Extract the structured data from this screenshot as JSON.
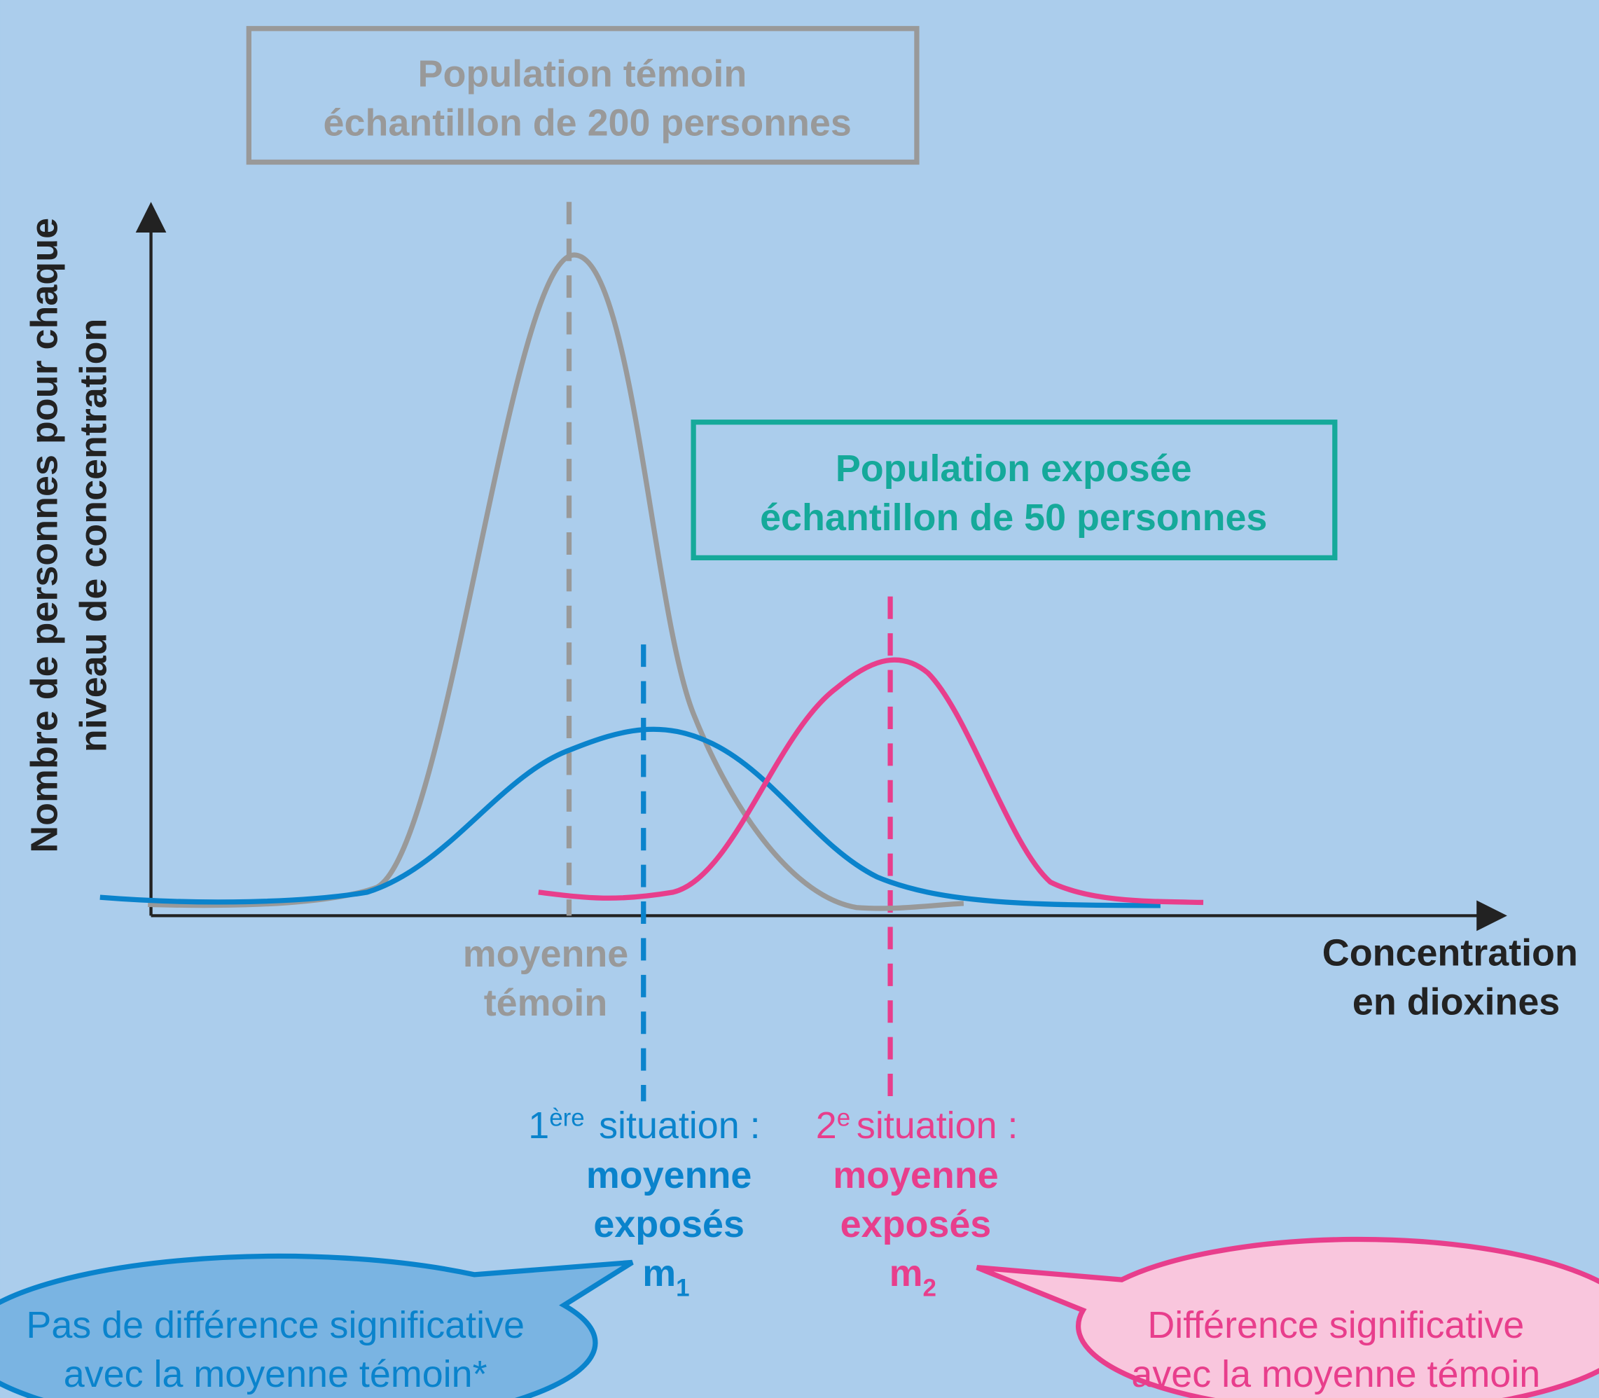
{
  "control_box": {
    "title": "Population témoin",
    "subtitle": "échantillon de 200 personnes"
  },
  "exposed_box": {
    "title": "Population exposée",
    "subtitle": "échantillon de 50 personnes"
  },
  "y_axis_label": [
    "Nombre de personnes pour chaque",
    "niveau de concentration"
  ],
  "x_axis_label": [
    "Concentration",
    "en dioxines"
  ],
  "control_mean_label": [
    "moyenne",
    "témoin"
  ],
  "situation_1": {
    "number": "1",
    "superscript": "ère",
    "heading": "situation :",
    "lines": [
      "moyenne",
      "exposés"
    ],
    "symbol": "m",
    "subscript": "1"
  },
  "situation_2": {
    "number": "2",
    "superscript": "e",
    "heading": "situation :",
    "lines": [
      "moyenne",
      "exposés"
    ],
    "symbol": "m",
    "subscript": "2"
  },
  "bubble_1": [
    "Pas de différence significative",
    "avec la moyenne témoin*"
  ],
  "bubble_2": [
    "Différence significative",
    "avec la moyenne témoin"
  ]
}
